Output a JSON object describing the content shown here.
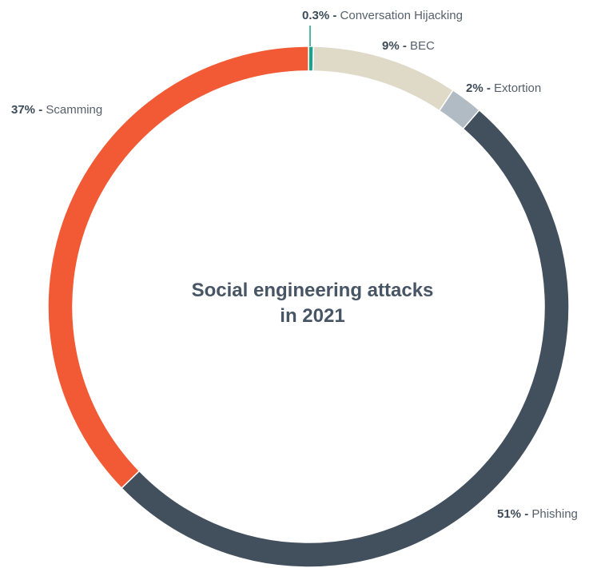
{
  "chart_data": {
    "type": "pie",
    "title": [
      "Social engineering attacks",
      "in 2021"
    ],
    "slices": [
      {
        "pct_label": "0.3% -",
        "name": "Conversation Hijacking",
        "value": 0.3,
        "color": "#1aa38a"
      },
      {
        "pct_label": "9% -",
        "name": "BEC",
        "value": 9,
        "color": "#dfd9c8"
      },
      {
        "pct_label": "2% -",
        "name": "Extortion",
        "value": 2,
        "color": "#b1bbc4"
      },
      {
        "pct_label": "51% -",
        "name": "Phishing",
        "value": 51,
        "color": "#42505e"
      },
      {
        "pct_label": "37% -",
        "name": "Scamming",
        "value": 37,
        "color": "#f15a35"
      }
    ]
  }
}
